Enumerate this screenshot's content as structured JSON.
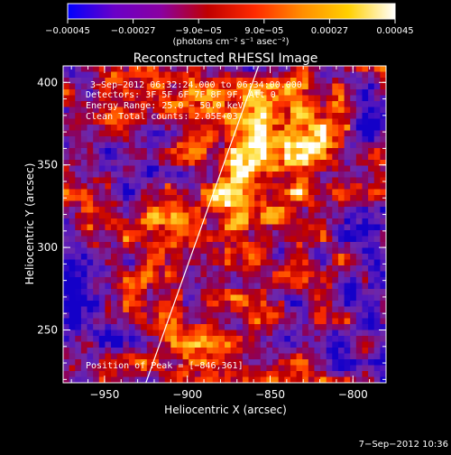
{
  "chart_data": {
    "type": "heatmap",
    "title": "Reconstructed RHESSI Image",
    "xlabel": "Heliocentric X (arcsec)",
    "ylabel": "Heliocentric Y (arcsec)",
    "xlim": [
      -975,
      -780
    ],
    "ylim": [
      218,
      410
    ],
    "x_ticks": [
      -950,
      -900,
      -850,
      -800
    ],
    "x_tick_labels": [
      "−950",
      "−900",
      "−850",
      "−800"
    ],
    "y_ticks": [
      250,
      300,
      350,
      400
    ],
    "y_tick_labels": [
      "250",
      "300",
      "350",
      "400"
    ],
    "colorbar": {
      "range": [
        -0.00045,
        0.00045
      ],
      "ticks": [
        -0.00045,
        -0.00027,
        -9e-05,
        9e-05,
        0.00027,
        0.00045
      ],
      "tick_labels": [
        "−0.00045",
        "−0.00027",
        "−9.0e−05",
        "9.0e−05",
        "0.00027",
        "0.00045"
      ],
      "unit_label": "(photons cm⁻² s⁻¹ asec⁻²)",
      "colors": [
        "#0000ff",
        "#6a00c8",
        "#8a00a0",
        "#c00000",
        "#ff2a00",
        "#ff8c00",
        "#ffd000",
        "#ffffff"
      ]
    },
    "annotations": [
      "3−Sep−2012 06:32:24.000 to 06:34:00.000",
      "Detectors: 3F 5F 6F 7F 8F 9F, Att 0",
      "Energy Range: 25.0 − 50.0 keV",
      "Clean     Total counts: 2.05E+03"
    ],
    "peak_label": "Position of Peak = [−846,361]",
    "peak": [
      -846,
      361
    ],
    "limb_line": [
      [
        -925,
        218
      ],
      [
        -857,
        410
      ]
    ],
    "grid": false
  },
  "footer": {
    "timestamp": "7−Sep−2012 10:36"
  }
}
